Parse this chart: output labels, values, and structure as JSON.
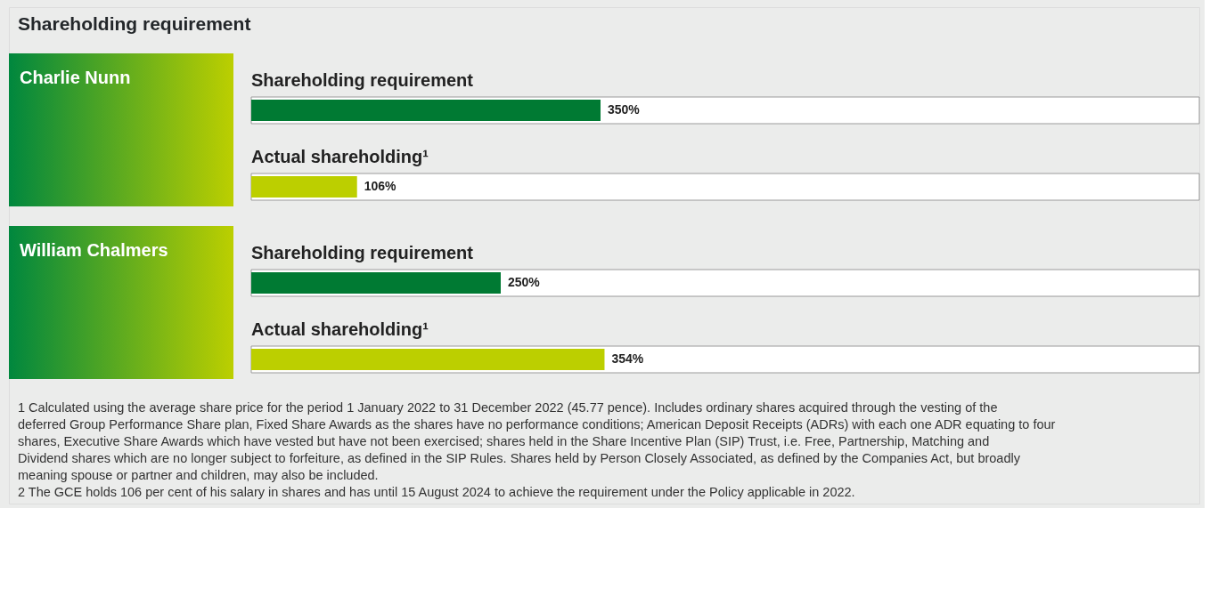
{
  "chart_data": {
    "type": "bar",
    "orientation": "horizontal",
    "title": "Shareholding requirement",
    "categories": [
      "Charlie Nunn",
      "William Chalmers"
    ],
    "series": [
      {
        "name": "Shareholding requirement",
        "color": "#007a33",
        "values": [
          350,
          250
        ],
        "value_labels": [
          "350%",
          "250%"
        ]
      },
      {
        "name": "Actual shareholding¹",
        "color": "#bccf00",
        "values": [
          106,
          354
        ],
        "value_labels": [
          "106%",
          "354%"
        ]
      }
    ],
    "xlim": [
      0,
      950
    ],
    "tick_labels": false,
    "annotations": [
      "1   Calculated using the average share price for the period 1 January 2022 to 31 December 2022 (45.77 pence). Includes ordinary shares acquired through the vesting of the deferred Group Performance Share plan, Fixed Share Awards as the shares have no performance conditions; American Deposit Receipts (ADRs) with each one ADR equating to four shares, Executive Share Awards which have vested but have not been exercised; shares held in the Share Incentive Plan (SIP) Trust, i.e. Free, Partnership, Matching and Dividend shares which are no longer subject to forfeiture, as defined in the SIP Rules. Shares held by Person Closely Associated, as defined by the Companies Act, but broadly meaning spouse or partner and children, may also be included.",
      "2   The GCE holds 106 per cent of his salary in shares and has until 15 August 2024 to achieve the requirement under the Policy applicable in 2022."
    ]
  }
}
